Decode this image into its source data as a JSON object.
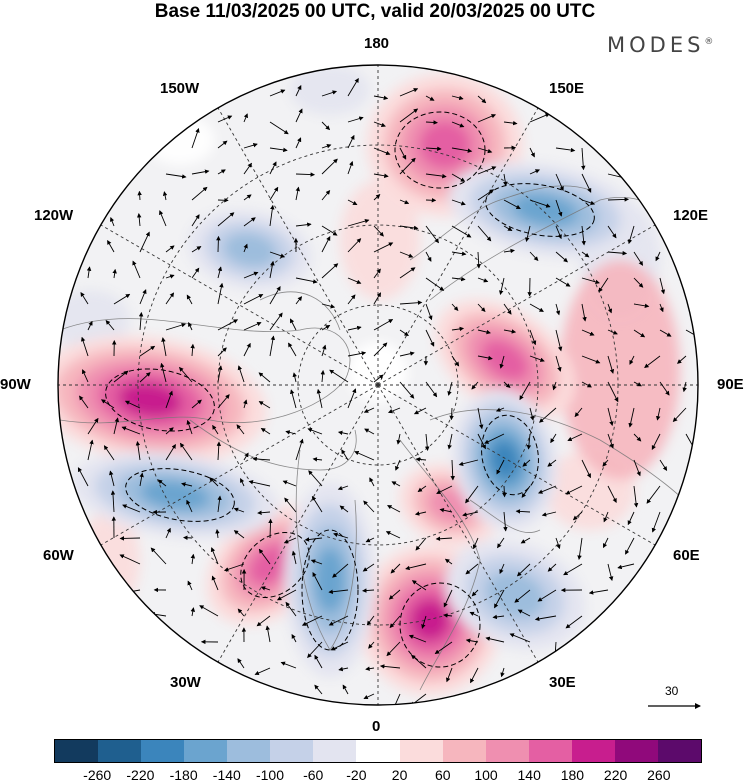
{
  "title": "Base 11/03/2025 00 UTC, valid 20/03/2025 00 UTC",
  "brand": "MODES",
  "brand_mark": "®",
  "map_labels": {
    "top": "180",
    "bottom": "0",
    "left": "90W",
    "right": "90E",
    "upper_left": "150W",
    "upper_right": "150E",
    "mid_upper_left": "120W",
    "mid_upper_right": "120E",
    "mid_lower_left": "60W",
    "mid_lower_right": "60E",
    "lower_left": "30W",
    "lower_right": "30E"
  },
  "reference_vector": {
    "label": "30"
  },
  "colorbar": {
    "colors": [
      "#123a5e",
      "#1f5f8f",
      "#3b85bc",
      "#6ba4cf",
      "#9dbddd",
      "#c5d1e8",
      "#e3e4f0",
      "#ffffff",
      "#fbdcdc",
      "#f6b6be",
      "#ef8fb0",
      "#e45fa3",
      "#c81e8e",
      "#90097b",
      "#5c0a6b"
    ],
    "ticks": [
      "-260",
      "-220",
      "-180",
      "-140",
      "-100",
      "-60",
      "-20",
      "20",
      "60",
      "100",
      "140",
      "180",
      "220",
      "260"
    ]
  },
  "anomaly_centers": [
    {
      "sign": "positive",
      "value": 200,
      "region": "North America (~90W)"
    },
    {
      "sign": "positive",
      "value": 160,
      "region": "Bering Sea / 170E"
    },
    {
      "sign": "positive",
      "value": 140,
      "region": "Siberia (~100E)"
    },
    {
      "sign": "positive",
      "value": 180,
      "region": "Europe (~10E)"
    },
    {
      "sign": "positive",
      "value": 140,
      "region": "North Atlantic (~45W)"
    },
    {
      "sign": "positive",
      "value": 120,
      "region": "Scandinavia / Kara Sea (~40E)"
    },
    {
      "sign": "negative",
      "value": -160,
      "region": "East Siberia (~130E)"
    },
    {
      "sign": "negative",
      "value": -180,
      "region": "Central Asia (~70E)"
    },
    {
      "sign": "negative",
      "value": -140,
      "region": "Western Atlantic (~70W)"
    },
    {
      "sign": "negative",
      "value": -140,
      "region": "Greenland (~20W)"
    },
    {
      "sign": "negative",
      "value": -120,
      "region": "Eastern Europe (~35E)"
    },
    {
      "sign": "negative",
      "value": -100,
      "region": "Gulf of Alaska (~140W)"
    }
  ]
}
